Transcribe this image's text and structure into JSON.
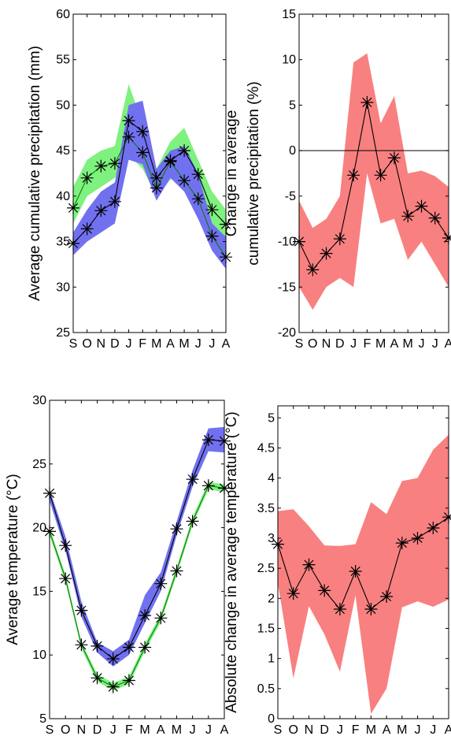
{
  "chart_data": [
    {
      "id": "precip",
      "type": "area",
      "ylabel": "Average cumulative precipitation (mm)",
      "ylim": [
        25,
        60
      ],
      "yticks": [
        25,
        30,
        35,
        40,
        45,
        50,
        55,
        60
      ],
      "categories": [
        "S",
        "O",
        "N",
        "D",
        "J",
        "F",
        "M",
        "A",
        "M",
        "J",
        "J",
        "A"
      ],
      "colors": {
        "blue": "#7171f0",
        "green": "#7ef17e"
      },
      "series": [
        {
          "color": "green",
          "values": [
            38.7,
            42.0,
            43.3,
            43.6,
            46.5,
            44.8,
            40.9,
            43.8,
            41.7,
            39.7,
            35.6,
            33.3
          ],
          "upper": [
            41.0,
            44.0,
            45.0,
            45.5,
            52.3,
            48.0,
            43.0,
            46.0,
            47.5,
            44.0,
            40.5,
            38.5
          ],
          "lower": [
            37.0,
            40.0,
            41.0,
            42.0,
            44.5,
            43.0,
            40.0,
            41.8,
            42.0,
            38.0,
            35.0,
            35.0
          ]
        },
        {
          "color": "blue",
          "values": [
            34.8,
            36.4,
            38.4,
            39.4,
            48.3,
            47.1,
            42.0,
            43.9,
            45.0,
            42.4,
            38.5,
            36.9
          ],
          "upper": [
            36.0,
            38.5,
            40.5,
            41.5,
            50.0,
            50.5,
            43.0,
            45.0,
            45.5,
            42.5,
            37.0,
            35.5
          ],
          "lower": [
            33.5,
            35.0,
            36.0,
            37.0,
            44.0,
            43.5,
            39.5,
            42.0,
            40.5,
            37.5,
            34.0,
            32.0
          ]
        }
      ]
    },
    {
      "id": "precip_change",
      "type": "area",
      "ylabel": "Change in average cumulative precipitation (%)",
      "ylabel_lines": [
        "Change in average",
        "cumulative precipitation (%)"
      ],
      "ylim": [
        -20,
        15
      ],
      "yticks": [
        -20,
        -15,
        -10,
        -5,
        0,
        5,
        10,
        15
      ],
      "zero_line": true,
      "categories": [
        "S",
        "O",
        "N",
        "D",
        "J",
        "F",
        "M",
        "A",
        "M",
        "J",
        "J",
        "A"
      ],
      "colors": {
        "red": "#f98080"
      },
      "series": [
        {
          "color": "red",
          "values": [
            -10.0,
            -13.1,
            -11.3,
            -9.7,
            -2.7,
            5.3,
            -2.7,
            -0.8,
            -7.2,
            -6.1,
            -7.4,
            -9.6
          ],
          "upper": [
            -5.5,
            -8.5,
            -7.5,
            -5.0,
            9.7,
            10.7,
            3.0,
            6.0,
            -2.5,
            -2.2,
            -2.8,
            -4.0
          ],
          "lower": [
            -15.0,
            -17.5,
            -15.0,
            -14.0,
            -15.0,
            -2.5,
            -8.0,
            -7.5,
            -12.0,
            -10.0,
            -12.5,
            -15.0
          ]
        }
      ]
    },
    {
      "id": "temp",
      "type": "area",
      "ylabel": "Average temperature (°C)",
      "ylim": [
        5,
        30
      ],
      "yticks": [
        5,
        10,
        15,
        20,
        25,
        30
      ],
      "categories": [
        "S",
        "O",
        "N",
        "D",
        "J",
        "F",
        "M",
        "A",
        "M",
        "J",
        "J",
        "A"
      ],
      "colors": {
        "blue": "#7171f0",
        "green": "#7ef17e"
      },
      "series": [
        {
          "color": "blue",
          "values": [
            22.7,
            18.6,
            13.5,
            10.7,
            9.7,
            10.6,
            13.1,
            15.6,
            19.9,
            23.8,
            26.9,
            26.8
          ],
          "upper": [
            23.0,
            19.3,
            14.2,
            11.0,
            10.3,
            11.2,
            14.7,
            16.5,
            20.5,
            24.5,
            27.8,
            27.9
          ],
          "lower": [
            22.1,
            18.2,
            13.0,
            10.2,
            9.1,
            10.0,
            12.5,
            15.0,
            19.4,
            23.2,
            26.0,
            25.9
          ]
        },
        {
          "color": "green",
          "values": [
            19.7,
            16.0,
            10.8,
            8.2,
            7.5,
            8.0,
            10.6,
            12.9,
            16.6,
            20.5,
            23.3,
            23.1
          ],
          "upper": [
            20.0,
            16.3,
            11.0,
            8.5,
            7.8,
            8.3,
            10.9,
            13.2,
            16.9,
            20.8,
            23.6,
            23.4
          ],
          "lower": [
            19.4,
            15.7,
            10.5,
            7.9,
            7.2,
            7.7,
            10.3,
            12.6,
            16.3,
            20.2,
            23.0,
            22.8
          ]
        }
      ]
    },
    {
      "id": "temp_change",
      "type": "area",
      "ylabel": "Absolute change in average temperature (°C)",
      "ylim": [
        0,
        5.2
      ],
      "yticks": [
        0,
        0.5,
        1,
        1.5,
        2,
        2.5,
        3,
        3.5,
        4,
        4.5,
        5
      ],
      "categories": [
        "S",
        "O",
        "N",
        "D",
        "J",
        "F",
        "M",
        "A",
        "M",
        "J",
        "J",
        "A"
      ],
      "colors": {
        "red": "#f98080"
      },
      "series": [
        {
          "color": "red",
          "values": [
            2.9,
            2.08,
            2.56,
            2.13,
            1.82,
            2.45,
            1.82,
            2.03,
            2.92,
            3.0,
            3.17,
            3.35
          ],
          "upper": [
            3.45,
            3.48,
            3.2,
            2.88,
            2.87,
            2.9,
            3.6,
            3.4,
            3.95,
            4.0,
            4.47,
            4.72
          ],
          "lower": [
            2.25,
            0.67,
            1.87,
            1.4,
            0.78,
            2.05,
            0.08,
            0.5,
            1.85,
            1.95,
            1.86,
            1.98
          ]
        }
      ]
    }
  ]
}
